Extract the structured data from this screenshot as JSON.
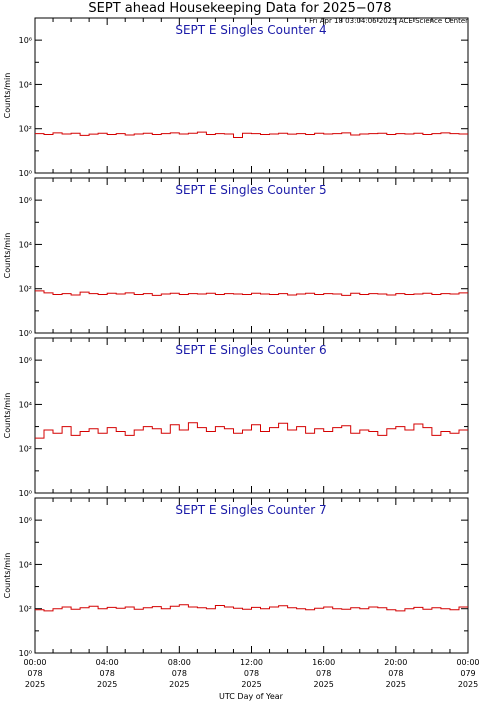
{
  "title": "SEPT ahead Housekeeping Data for 2025−078",
  "subtitle": "Fri Apr 18 03:04:06 2025 ACE Science Center",
  "xlabel": "UTC Day of Year",
  "x_ticks": [
    {
      "time": "00:00",
      "day": "078",
      "year": "2025"
    },
    {
      "time": "04:00",
      "day": "078",
      "year": "2025"
    },
    {
      "time": "08:00",
      "day": "078",
      "year": "2025"
    },
    {
      "time": "12:00",
      "day": "078",
      "year": "2025"
    },
    {
      "time": "16:00",
      "day": "078",
      "year": "2025"
    },
    {
      "time": "20:00",
      "day": "078",
      "year": "2025"
    },
    {
      "time": "00:00",
      "day": "079",
      "year": "2025"
    }
  ],
  "colors": {
    "series": "#d40000",
    "panel_title": "#1a1aa8",
    "axes": "#000000"
  },
  "chart_data": [
    {
      "type": "line",
      "step": true,
      "title": "SEPT E Singles Counter 4",
      "ylabel": "Counts/min",
      "yscale": "log",
      "ylim": [
        1,
        10000000
      ],
      "y_tick_labels": [
        "10⁰",
        "10²",
        "10⁴",
        "10⁶"
      ],
      "xlabel": "UTC Day of Year",
      "xlim_hours": [
        0,
        24
      ],
      "x_hours": [
        0,
        0.5,
        1,
        1.5,
        2,
        2.5,
        3,
        3.5,
        4,
        4.5,
        5,
        5.5,
        6,
        6.5,
        7,
        7.5,
        8,
        8.5,
        9,
        9.5,
        10,
        10.5,
        11,
        11.5,
        12,
        12.5,
        13,
        13.5,
        14,
        14.5,
        15,
        15.5,
        16,
        16.5,
        17,
        17.5,
        18,
        18.5,
        19,
        19.5,
        20,
        20.5,
        21,
        21.5,
        22,
        22.5,
        23,
        23.5
      ],
      "values": [
        60,
        55,
        65,
        58,
        62,
        50,
        57,
        63,
        55,
        60,
        52,
        58,
        62,
        55,
        60,
        65,
        58,
        62,
        70,
        55,
        60,
        58,
        40,
        62,
        60,
        55,
        58,
        62,
        57,
        60,
        55,
        62,
        58,
        60,
        65,
        52,
        58,
        60,
        62,
        55,
        60,
        58,
        62,
        55,
        60,
        65,
        60,
        58
      ]
    },
    {
      "type": "line",
      "step": true,
      "title": "SEPT E Singles Counter 5",
      "ylabel": "Counts/min",
      "yscale": "log",
      "ylim": [
        1,
        10000000
      ],
      "y_tick_labels": [
        "10⁰",
        "10²",
        "10⁴",
        "10⁶"
      ],
      "xlabel": "UTC Day of Year",
      "xlim_hours": [
        0,
        24
      ],
      "x_hours": [
        0,
        0.5,
        1,
        1.5,
        2,
        2.5,
        3,
        3.5,
        4,
        4.5,
        5,
        5.5,
        6,
        6.5,
        7,
        7.5,
        8,
        8.5,
        9,
        9.5,
        10,
        10.5,
        11,
        11.5,
        12,
        12.5,
        13,
        13.5,
        14,
        14.5,
        15,
        15.5,
        16,
        16.5,
        17,
        17.5,
        18,
        18.5,
        19,
        19.5,
        20,
        20.5,
        21,
        21.5,
        22,
        22.5,
        23,
        23.5
      ],
      "values": [
        80,
        65,
        55,
        60,
        52,
        70,
        60,
        55,
        62,
        58,
        65,
        55,
        60,
        50,
        58,
        62,
        55,
        60,
        58,
        62,
        55,
        60,
        58,
        55,
        62,
        58,
        55,
        60,
        52,
        58,
        62,
        55,
        60,
        58,
        50,
        62,
        55,
        60,
        58,
        52,
        60,
        55,
        58,
        62,
        55,
        60,
        58,
        65
      ]
    },
    {
      "type": "line",
      "step": true,
      "title": "SEPT E Singles Counter 6",
      "ylabel": "Counts/min",
      "yscale": "log",
      "ylim": [
        1,
        10000000
      ],
      "y_tick_labels": [
        "10⁰",
        "10²",
        "10⁴",
        "10⁶"
      ],
      "xlabel": "UTC Day of Year",
      "xlim_hours": [
        0,
        24
      ],
      "x_hours": [
        0,
        0.5,
        1,
        1.5,
        2,
        2.5,
        3,
        3.5,
        4,
        4.5,
        5,
        5.5,
        6,
        6.5,
        7,
        7.5,
        8,
        8.5,
        9,
        9.5,
        10,
        10.5,
        11,
        11.5,
        12,
        12.5,
        13,
        13.5,
        14,
        14.5,
        15,
        15.5,
        16,
        16.5,
        17,
        17.5,
        18,
        18.5,
        19,
        19.5,
        20,
        20.5,
        21,
        21.5,
        22,
        22.5,
        23,
        23.5
      ],
      "values": [
        300,
        700,
        500,
        1000,
        400,
        600,
        800,
        500,
        900,
        600,
        400,
        700,
        1000,
        800,
        500,
        1200,
        700,
        1500,
        900,
        600,
        1000,
        800,
        500,
        700,
        1200,
        600,
        900,
        1400,
        700,
        1000,
        500,
        800,
        600,
        900,
        1100,
        500,
        700,
        600,
        400,
        800,
        1000,
        700,
        1300,
        900,
        400,
        600,
        500,
        700
      ]
    },
    {
      "type": "line",
      "step": true,
      "title": "SEPT E Singles Counter 7",
      "ylabel": "Counts/min",
      "yscale": "log",
      "ylim": [
        1,
        10000000
      ],
      "y_tick_labels": [
        "10⁰",
        "10²",
        "10⁴",
        "10⁶"
      ],
      "xlabel": "UTC Day of Year",
      "xlim_hours": [
        0,
        24
      ],
      "x_hours": [
        0,
        0.5,
        1,
        1.5,
        2,
        2.5,
        3,
        3.5,
        4,
        4.5,
        5,
        5.5,
        6,
        6.5,
        7,
        7.5,
        8,
        8.5,
        9,
        9.5,
        10,
        10.5,
        11,
        11.5,
        12,
        12.5,
        13,
        13.5,
        14,
        14.5,
        15,
        15.5,
        16,
        16.5,
        17,
        17.5,
        18,
        18.5,
        19,
        19.5,
        20,
        20.5,
        21,
        21.5,
        22,
        22.5,
        23,
        23.5
      ],
      "values": [
        90,
        80,
        100,
        120,
        95,
        110,
        130,
        100,
        115,
        105,
        120,
        95,
        110,
        125,
        100,
        130,
        150,
        120,
        110,
        100,
        140,
        120,
        105,
        95,
        115,
        100,
        120,
        135,
        110,
        100,
        90,
        105,
        120,
        100,
        95,
        110,
        100,
        120,
        110,
        90,
        80,
        100,
        115,
        95,
        110,
        100,
        90,
        120
      ]
    }
  ]
}
